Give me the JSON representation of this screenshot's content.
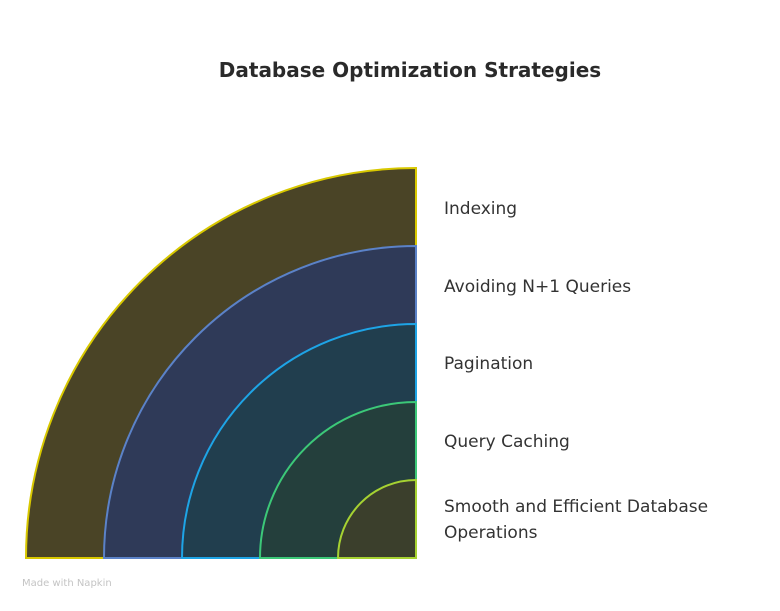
{
  "title": "Database Optimization Strategies",
  "layers": [
    {
      "label": "Indexing"
    },
    {
      "label": "Avoiding N+1 Queries"
    },
    {
      "label": "Pagination"
    },
    {
      "label": "Query Caching"
    },
    {
      "label": "Smooth and Efficient Database Operations"
    }
  ],
  "watermark": "Made with Napkin"
}
